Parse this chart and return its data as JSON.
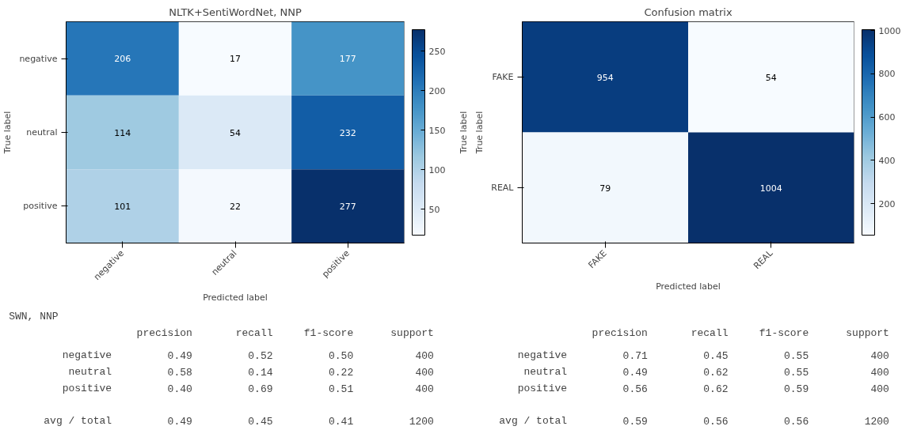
{
  "chart_data": [
    {
      "type": "heatmap",
      "title": "NLTK+SentiWordNet, NNP",
      "xlabel": "Predicted label",
      "ylabel": "True label",
      "categories": [
        "negative",
        "neutral",
        "positive"
      ],
      "y_categories": [
        "negative",
        "neutral",
        "positive"
      ],
      "cells": [
        [
          206,
          17,
          177
        ],
        [
          114,
          54,
          232
        ],
        [
          101,
          22,
          277
        ]
      ],
      "clim": [
        17,
        277
      ],
      "cticks": [
        50,
        100,
        150,
        200,
        250
      ],
      "data_labels": true
    },
    {
      "type": "heatmap",
      "title": "Confusion matrix",
      "xlabel": "Predicted label",
      "ylabel": "True label",
      "annotations": [
        "True label"
      ],
      "categories": [
        "FAKE",
        "REAL"
      ],
      "y_categories": [
        "FAKE",
        "REAL"
      ],
      "cells": [
        [
          954,
          54
        ],
        [
          79,
          1004
        ]
      ],
      "clim": [
        54,
        1004
      ],
      "cticks": [
        200,
        400,
        600,
        800,
        1000
      ],
      "data_labels": true
    },
    {
      "type": "other",
      "title": "SWN, NNP",
      "categories": [
        "precision",
        "recall",
        "f1-score",
        "support"
      ],
      "y_categories": [
        "negative",
        "neutral",
        "positive",
        "avg / total"
      ],
      "cell_labels": [
        [
          "0.49",
          "0.52",
          "0.50",
          "400"
        ],
        [
          "0.58",
          "0.14",
          "0.22",
          "400"
        ],
        [
          "0.40",
          "0.69",
          "0.51",
          "400"
        ],
        [
          "0.49",
          "0.45",
          "0.41",
          "1200"
        ]
      ]
    },
    {
      "type": "other",
      "categories": [
        "precision",
        "recall",
        "f1-score",
        "support"
      ],
      "y_categories": [
        "negative",
        "neutral",
        "positive",
        "avg / total"
      ],
      "cell_labels": [
        [
          "0.71",
          "0.45",
          "0.55",
          "400"
        ],
        [
          "0.49",
          "0.62",
          "0.55",
          "400"
        ],
        [
          "0.56",
          "0.62",
          "0.59",
          "400"
        ],
        [
          "0.59",
          "0.56",
          "0.56",
          "1200"
        ]
      ]
    }
  ]
}
